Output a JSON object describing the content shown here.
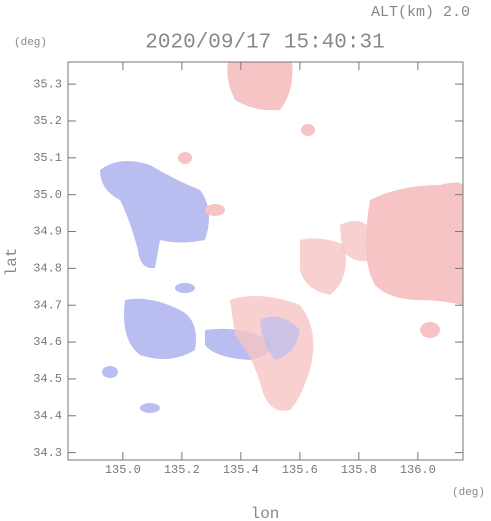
{
  "chart_data": {
    "type": "map",
    "subtitle": "ALT(km) 2.0",
    "title": "2020/09/17 15:40:31",
    "y_unit": "(deg)",
    "x_unit": "(deg)",
    "x_label": "lon",
    "y_label": "lat",
    "xlim": [
      134.814,
      136.153
    ],
    "ylim": [
      34.28,
      35.36
    ],
    "xticks": [
      {
        "value": 135,
        "label": "135.0"
      },
      135.2,
      135.4,
      135.6,
      135.8,
      {
        "value": 136,
        "label": "136.0"
      }
    ],
    "yticks": [
      34.3,
      34.4,
      34.5,
      34.6,
      34.7,
      34.8,
      34.9,
      {
        "value": 35,
        "label": "35.0"
      },
      35.1,
      35.2,
      35.3
    ]
  }
}
